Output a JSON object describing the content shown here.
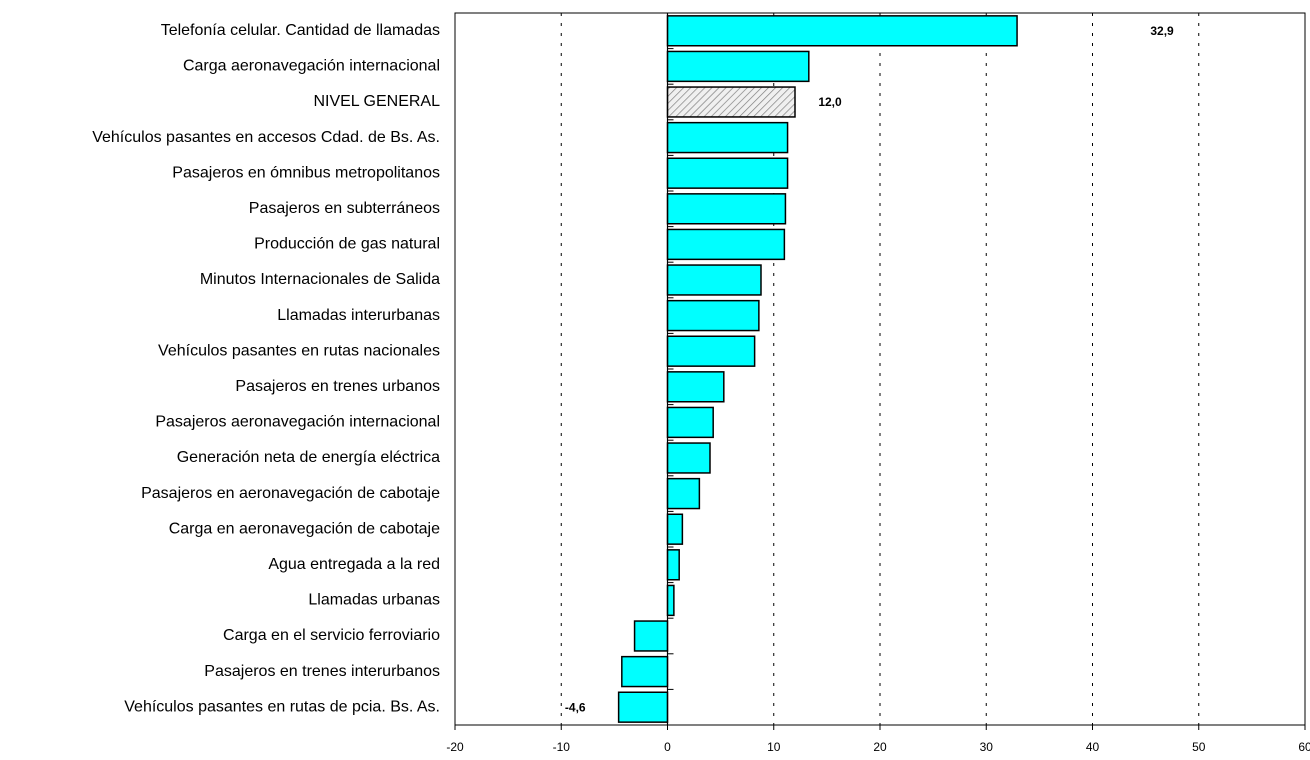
{
  "colors": {
    "bar_fill": "#00ffff",
    "bar_stroke": "#000000",
    "highlight_fill": "#f0f0f0",
    "highlight_hatch": "#808080",
    "grid": "#000000",
    "background": "#ffffff"
  },
  "chart_data": {
    "type": "bar",
    "orientation": "horizontal",
    "title": "",
    "xlabel": "",
    "ylabel": "",
    "xlim": [
      -20,
      60
    ],
    "x_ticks": [
      -20,
      -10,
      0,
      10,
      20,
      30,
      40,
      50,
      60
    ],
    "x_tick_labels": [
      "-20",
      "-10",
      "0",
      "10",
      "20",
      "30",
      "40",
      "50",
      "60"
    ],
    "grid": "vertical dotted",
    "legend": "none",
    "highlight_category": "NIVEL GENERAL",
    "categories": [
      "Telefonía celular. Cantidad de llamadas",
      "Carga aeronavegación internacional",
      "NIVEL GENERAL",
      "Vehículos pasantes en accesos Cdad. de Bs. As.",
      "Pasajeros en ómnibus metropolitanos",
      "Pasajeros en subterráneos",
      "Producción de gas natural",
      "Minutos Internacionales de Salida",
      "Llamadas interurbanas",
      "Vehículos pasantes en rutas nacionales",
      "Pasajeros en trenes urbanos",
      "Pasajeros aeronavegación internacional",
      "Generación neta de energía eléctrica",
      "Pasajeros en aeronavegación de cabotaje",
      "Carga en aeronavegación de cabotaje",
      "Agua entregada a la red",
      "Llamadas urbanas",
      "Carga en el servicio ferroviario",
      "Pasajeros en trenes interurbanos",
      "Vehículos pasantes en rutas de pcia. Bs. As."
    ],
    "values": [
      32.9,
      13.3,
      12.0,
      11.3,
      11.3,
      11.1,
      11.0,
      8.8,
      8.6,
      8.2,
      5.3,
      4.3,
      4.0,
      3.0,
      1.4,
      1.1,
      0.6,
      -3.1,
      -4.3,
      -4.6
    ],
    "data_labels": [
      {
        "category": "Telefonía celular. Cantidad de llamadas",
        "text": "32,9"
      },
      {
        "category": "NIVEL GENERAL",
        "text": "12,0"
      },
      {
        "category": "Vehículos pasantes en rutas de pcia. Bs. As.",
        "text": "-4,6"
      }
    ]
  }
}
